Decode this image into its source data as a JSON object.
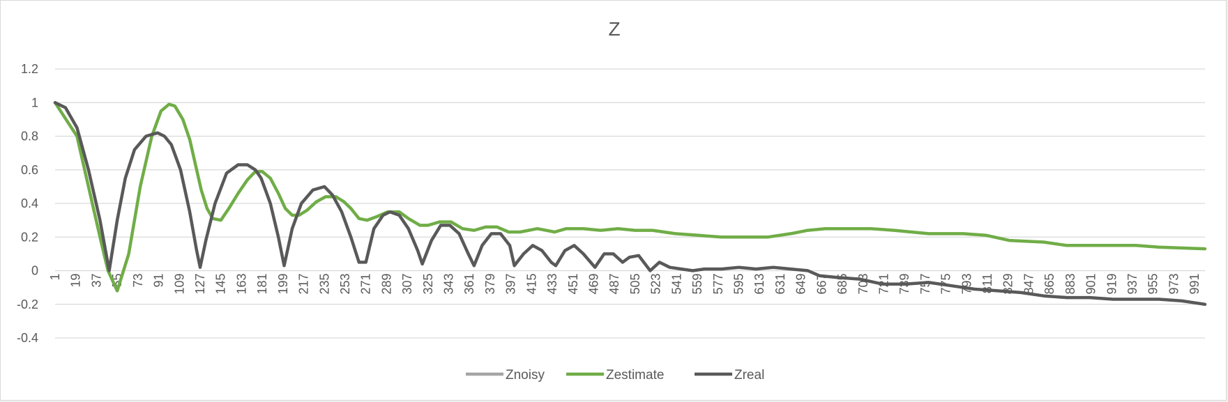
{
  "chart_data": {
    "type": "line",
    "title": "Z",
    "xlabel": "",
    "ylabel": "",
    "ylim": [
      -0.4,
      1.2
    ],
    "yticks": [
      "1.2",
      "1",
      "0.8",
      "0.6",
      "0.4",
      "0.2",
      "0",
      "-0.2",
      "-0.4"
    ],
    "ytick_values": [
      1.2,
      1,
      0.8,
      0.6,
      0.4,
      0.2,
      0,
      -0.2,
      -0.4
    ],
    "xlim": [
      1,
      1000
    ],
    "xtick_labels": [
      "1",
      "19",
      "37",
      "55",
      "73",
      "91",
      "109",
      "127",
      "145",
      "163",
      "181",
      "199",
      "217",
      "235",
      "253",
      "271",
      "289",
      "307",
      "325",
      "343",
      "361",
      "379",
      "397",
      "415",
      "433",
      "451",
      "469",
      "487",
      "505",
      "523",
      "541",
      "559",
      "577",
      "595",
      "613",
      "631",
      "649",
      "667",
      "685",
      "703",
      "721",
      "739",
      "757",
      "775",
      "793",
      "811",
      "829",
      "847",
      "865",
      "883",
      "901",
      "919",
      "937",
      "955",
      "973",
      "991"
    ],
    "grid": true,
    "legend_position": "bottom",
    "series": [
      {
        "name": "Znoisy",
        "color": "#a5a5a5",
        "x": [],
        "values": []
      },
      {
        "name": "Zestimate",
        "color": "#70ad47",
        "x": [
          1,
          20,
          30,
          40,
          47,
          55,
          65,
          75,
          85,
          93,
          100,
          105,
          112,
          118,
          124,
          128,
          133,
          138,
          145,
          152,
          160,
          168,
          175,
          181,
          188,
          195,
          201,
          207,
          213,
          220,
          228,
          236,
          245,
          252,
          258,
          265,
          272,
          280,
          290,
          300,
          308,
          318,
          325,
          335,
          345,
          355,
          365,
          375,
          385,
          395,
          405,
          420,
          435,
          445,
          460,
          475,
          490,
          505,
          520,
          540,
          560,
          580,
          600,
          620,
          640,
          655,
          670,
          690,
          710,
          730,
          760,
          790,
          810,
          830,
          860,
          880,
          910,
          940,
          960,
          1000
        ],
        "values": [
          1.0,
          0.8,
          0.5,
          0.2,
          0.0,
          -0.12,
          0.1,
          0.5,
          0.8,
          0.95,
          0.99,
          0.98,
          0.9,
          0.78,
          0.6,
          0.48,
          0.37,
          0.31,
          0.3,
          0.37,
          0.46,
          0.54,
          0.59,
          0.59,
          0.55,
          0.46,
          0.37,
          0.33,
          0.33,
          0.36,
          0.41,
          0.44,
          0.44,
          0.41,
          0.37,
          0.31,
          0.3,
          0.32,
          0.35,
          0.35,
          0.31,
          0.27,
          0.27,
          0.29,
          0.29,
          0.25,
          0.24,
          0.26,
          0.26,
          0.23,
          0.23,
          0.25,
          0.23,
          0.25,
          0.25,
          0.24,
          0.25,
          0.24,
          0.24,
          0.22,
          0.21,
          0.2,
          0.2,
          0.2,
          0.22,
          0.24,
          0.25,
          0.25,
          0.25,
          0.24,
          0.22,
          0.22,
          0.21,
          0.18,
          0.17,
          0.15,
          0.15,
          0.15,
          0.14,
          0.13
        ]
      },
      {
        "name": "Zreal",
        "color": "#595959",
        "x": [
          1,
          10,
          20,
          30,
          40,
          48,
          55,
          62,
          70,
          80,
          90,
          96,
          102,
          110,
          118,
          124,
          127,
          132,
          140,
          150,
          160,
          168,
          175,
          180,
          188,
          195,
          200,
          207,
          215,
          225,
          235,
          242,
          250,
          258,
          265,
          271,
          278,
          286,
          292,
          300,
          308,
          316,
          320,
          328,
          336,
          344,
          352,
          360,
          365,
          372,
          380,
          388,
          396,
          400,
          408,
          416,
          424,
          432,
          436,
          444,
          452,
          460,
          470,
          478,
          486,
          494,
          500,
          508,
          518,
          526,
          535,
          545,
          555,
          565,
          580,
          595,
          610,
          625,
          640,
          655,
          665,
          680,
          700,
          720,
          740,
          760,
          780,
          800,
          820,
          840,
          860,
          880,
          900,
          920,
          940,
          960,
          980,
          1000
        ],
        "values": [
          1.0,
          0.97,
          0.85,
          0.6,
          0.3,
          0.0,
          0.3,
          0.55,
          0.72,
          0.8,
          0.82,
          0.8,
          0.75,
          0.6,
          0.35,
          0.12,
          0.02,
          0.18,
          0.4,
          0.58,
          0.63,
          0.63,
          0.6,
          0.55,
          0.4,
          0.2,
          0.03,
          0.25,
          0.4,
          0.48,
          0.5,
          0.45,
          0.35,
          0.2,
          0.05,
          0.05,
          0.25,
          0.33,
          0.35,
          0.33,
          0.25,
          0.12,
          0.04,
          0.18,
          0.27,
          0.27,
          0.22,
          0.1,
          0.03,
          0.15,
          0.22,
          0.22,
          0.15,
          0.03,
          0.1,
          0.15,
          0.12,
          0.05,
          0.03,
          0.12,
          0.15,
          0.1,
          0.02,
          0.1,
          0.1,
          0.05,
          0.08,
          0.09,
          0.0,
          0.05,
          0.02,
          0.01,
          0.0,
          0.01,
          0.01,
          0.02,
          0.01,
          0.02,
          0.01,
          0.0,
          -0.03,
          -0.04,
          -0.05,
          -0.08,
          -0.08,
          -0.07,
          -0.09,
          -0.11,
          -0.12,
          -0.13,
          -0.15,
          -0.16,
          -0.16,
          -0.17,
          -0.17,
          -0.17,
          -0.18,
          -0.2
        ]
      }
    ]
  }
}
